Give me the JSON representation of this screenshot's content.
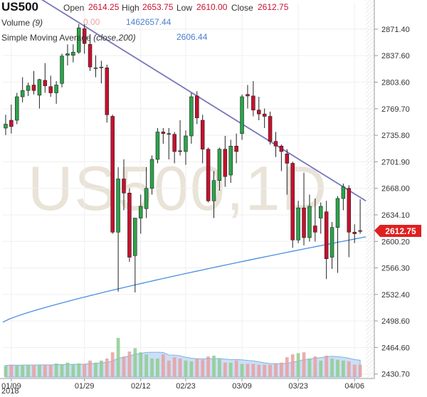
{
  "header": {
    "symbol": "US500",
    "open_label": "Open",
    "open_value": "2614.25",
    "high_label": "High",
    "high_value": "2653.75",
    "low_label": "Low",
    "low_value": "2610.00",
    "close_label": "Close",
    "close_value": "2612.75",
    "volume_label": "Volume",
    "volume_param": "(9)",
    "volume_value_1": "0.00",
    "volume_value_2": "1462657.44",
    "sma_label": "Simple Moving Average",
    "sma_param": "(close,200)",
    "sma_value": "2606.44"
  },
  "watermark": "US500,1D",
  "price_badge": "2612.75",
  "colors": {
    "up": "#2aa44a",
    "down": "#c8102e",
    "sma": "#4a8fe0",
    "trendline": "#7777bb",
    "volume_fill": "#c7dcf3",
    "volume_bar": "#8fcc8f",
    "badge": "#e02020"
  },
  "chart_data": {
    "type": "candlestick",
    "y_axis": {
      "ticks": [
        "2871.40",
        "2837.60",
        "2803.60",
        "2769.70",
        "2735.80",
        "2701.90",
        "2668.00",
        "2634.10",
        "2600.20",
        "2566.30",
        "2532.40",
        "2498.60",
        "2464.60",
        "2430.70"
      ],
      "range": [
        2425,
        2905
      ]
    },
    "x_axis": {
      "ticks": [
        "01/09",
        "01/29",
        "02/12",
        "02/23",
        "03/09",
        "03/23",
        "04/06"
      ],
      "tick_index": [
        1,
        14,
        24,
        32,
        42,
        52,
        62
      ],
      "year_label": "2018"
    },
    "candles": [
      {
        "o": 2745,
        "h": 2762,
        "l": 2736,
        "c": 2750
      },
      {
        "o": 2755,
        "h": 2775,
        "l": 2738,
        "c": 2747
      },
      {
        "o": 2755,
        "h": 2790,
        "l": 2750,
        "c": 2785
      },
      {
        "o": 2785,
        "h": 2810,
        "l": 2778,
        "c": 2793
      },
      {
        "o": 2793,
        "h": 2803,
        "l": 2786,
        "c": 2799
      },
      {
        "o": 2800,
        "h": 2818,
        "l": 2788,
        "c": 2793
      },
      {
        "o": 2787,
        "h": 2808,
        "l": 2770,
        "c": 2807
      },
      {
        "o": 2806,
        "h": 2828,
        "l": 2790,
        "c": 2799
      },
      {
        "o": 2798,
        "h": 2812,
        "l": 2785,
        "c": 2790
      },
      {
        "o": 2790,
        "h": 2805,
        "l": 2776,
        "c": 2800
      },
      {
        "o": 2802,
        "h": 2840,
        "l": 2797,
        "c": 2837
      },
      {
        "o": 2838,
        "h": 2852,
        "l": 2825,
        "c": 2840
      },
      {
        "o": 2838,
        "h": 2852,
        "l": 2829,
        "c": 2842
      },
      {
        "o": 2842,
        "h": 2878,
        "l": 2840,
        "c": 2873
      },
      {
        "o": 2872,
        "h": 2878,
        "l": 2840,
        "c": 2853
      },
      {
        "o": 2852,
        "h": 2865,
        "l": 2818,
        "c": 2823
      },
      {
        "o": 2822,
        "h": 2838,
        "l": 2810,
        "c": 2822
      },
      {
        "o": 2822,
        "h": 2831,
        "l": 2802,
        "c": 2823
      },
      {
        "o": 2822,
        "h": 2826,
        "l": 2752,
        "c": 2762
      },
      {
        "o": 2760,
        "h": 2762,
        "l": 2610,
        "c": 2612
      },
      {
        "o": 2612,
        "h": 2695,
        "l": 2536,
        "c": 2680
      },
      {
        "o": 2680,
        "h": 2705,
        "l": 2640,
        "c": 2662
      },
      {
        "o": 2662,
        "h": 2668,
        "l": 2574,
        "c": 2580
      },
      {
        "o": 2582,
        "h": 2630,
        "l": 2535,
        "c": 2630
      },
      {
        "o": 2630,
        "h": 2660,
        "l": 2610,
        "c": 2645
      },
      {
        "o": 2642,
        "h": 2695,
        "l": 2630,
        "c": 2668
      },
      {
        "o": 2668,
        "h": 2710,
        "l": 2660,
        "c": 2705
      },
      {
        "o": 2705,
        "h": 2745,
        "l": 2700,
        "c": 2740
      },
      {
        "o": 2740,
        "h": 2745,
        "l": 2725,
        "c": 2738
      },
      {
        "o": 2738,
        "h": 2745,
        "l": 2705,
        "c": 2737
      },
      {
        "o": 2737,
        "h": 2740,
        "l": 2700,
        "c": 2715
      },
      {
        "o": 2716,
        "h": 2755,
        "l": 2710,
        "c": 2715
      },
      {
        "o": 2715,
        "h": 2742,
        "l": 2698,
        "c": 2735
      },
      {
        "o": 2735,
        "h": 2790,
        "l": 2725,
        "c": 2785
      },
      {
        "o": 2786,
        "h": 2792,
        "l": 2750,
        "c": 2758
      },
      {
        "o": 2755,
        "h": 2762,
        "l": 2700,
        "c": 2718
      },
      {
        "o": 2718,
        "h": 2720,
        "l": 2650,
        "c": 2652
      },
      {
        "o": 2652,
        "h": 2690,
        "l": 2630,
        "c": 2678
      },
      {
        "o": 2678,
        "h": 2720,
        "l": 2665,
        "c": 2718
      },
      {
        "o": 2718,
        "h": 2735,
        "l": 2670,
        "c": 2683
      },
      {
        "o": 2685,
        "h": 2730,
        "l": 2675,
        "c": 2722
      },
      {
        "o": 2722,
        "h": 2738,
        "l": 2700,
        "c": 2715
      },
      {
        "o": 2738,
        "h": 2788,
        "l": 2730,
        "c": 2785
      },
      {
        "o": 2788,
        "h": 2800,
        "l": 2770,
        "c": 2786
      },
      {
        "o": 2786,
        "h": 2805,
        "l": 2760,
        "c": 2768
      },
      {
        "o": 2768,
        "h": 2785,
        "l": 2755,
        "c": 2763
      },
      {
        "o": 2763,
        "h": 2770,
        "l": 2745,
        "c": 2760
      },
      {
        "o": 2760,
        "h": 2766,
        "l": 2724,
        "c": 2728
      },
      {
        "o": 2728,
        "h": 2740,
        "l": 2708,
        "c": 2722
      },
      {
        "o": 2722,
        "h": 2724,
        "l": 2690,
        "c": 2715
      },
      {
        "o": 2712,
        "h": 2718,
        "l": 2660,
        "c": 2700
      },
      {
        "o": 2700,
        "h": 2702,
        "l": 2592,
        "c": 2602
      },
      {
        "o": 2602,
        "h": 2652,
        "l": 2598,
        "c": 2643
      },
      {
        "o": 2643,
        "h": 2688,
        "l": 2595,
        "c": 2605
      },
      {
        "o": 2605,
        "h": 2660,
        "l": 2600,
        "c": 2645
      },
      {
        "o": 2620,
        "h": 2655,
        "l": 2600,
        "c": 2612
      },
      {
        "o": 2630,
        "h": 2650,
        "l": 2610,
        "c": 2645
      },
      {
        "o": 2638,
        "h": 2652,
        "l": 2552,
        "c": 2578
      },
      {
        "o": 2580,
        "h": 2625,
        "l": 2565,
        "c": 2618
      },
      {
        "o": 2618,
        "h": 2658,
        "l": 2560,
        "c": 2655
      },
      {
        "o": 2655,
        "h": 2674,
        "l": 2640,
        "c": 2670
      },
      {
        "o": 2668,
        "h": 2672,
        "l": 2580,
        "c": 2612
      },
      {
        "o": 2612,
        "h": 2622,
        "l": 2598,
        "c": 2610
      },
      {
        "o": 2614,
        "h": 2654,
        "l": 2610,
        "c": 2613
      }
    ],
    "volume": [
      0.28,
      0.3,
      0.28,
      0.3,
      0.3,
      0.3,
      0.3,
      0.3,
      0.3,
      0.33,
      0.3,
      0.35,
      0.3,
      0.33,
      0.32,
      0.4,
      0.35,
      0.4,
      0.45,
      0.6,
      0.95,
      0.5,
      0.62,
      0.7,
      0.6,
      0.55,
      0.45,
      0.45,
      0.55,
      0.4,
      0.48,
      0.45,
      0.4,
      0.38,
      0.45,
      0.42,
      0.5,
      0.52,
      0.45,
      0.35,
      0.35,
      0.4,
      0.32,
      0.32,
      0.32,
      0.3,
      0.3,
      0.3,
      0.32,
      0.35,
      0.48,
      0.55,
      0.58,
      0.6,
      0.45,
      0.5,
      0.4,
      0.52,
      0.45,
      0.42,
      0.4,
      0.38,
      0.3,
      0.3
    ],
    "sma_200": {
      "start": 2497,
      "end": 2606
    },
    "trendline": {
      "start_index": 4,
      "start_value": 2920,
      "end_index": 64,
      "end_value": 2652
    }
  }
}
